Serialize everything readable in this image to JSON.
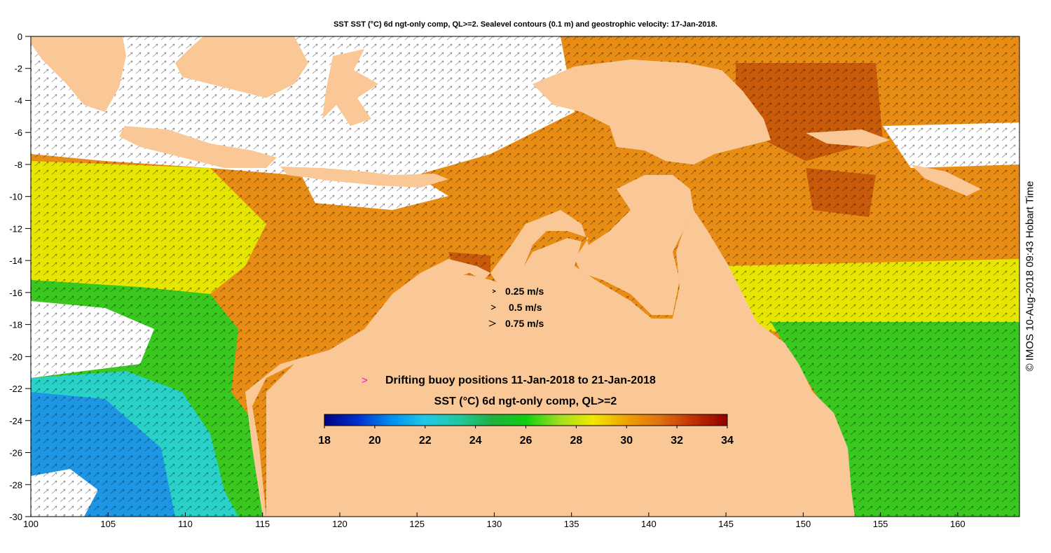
{
  "title": "SST SST (°C) 6d ngt-only comp, QL>=2. Sealevel contours (0.1 m) and geostrophic velocity: 17-Jan-2018.",
  "credit": "© IMOS 10-Aug-2018 09:43 Hobart Time",
  "axes": {
    "lon_range": [
      100,
      164
    ],
    "lat_range": [
      -30,
      0
    ],
    "x_ticks": [
      100,
      105,
      110,
      115,
      120,
      125,
      130,
      135,
      140,
      145,
      150,
      155,
      160
    ],
    "y_ticks": [
      0,
      -2,
      -4,
      -6,
      -8,
      -10,
      -12,
      -14,
      -16,
      -18,
      -20,
      -22,
      -24,
      -26,
      -28,
      -30
    ]
  },
  "velocity_legend": [
    {
      "label": "0.25 m/s",
      "speed": 0.25
    },
    {
      "label": "0.5 m/s",
      "speed": 0.5
    },
    {
      "label": "0.75 m/s",
      "speed": 0.75
    }
  ],
  "buoy_legend": {
    "symbol": ">",
    "label": "Drifting buoy positions 11-Jan-2018 to 21-Jan-2018",
    "color": "#ff00ff"
  },
  "colorbar": {
    "title": "SST (°C) 6d ngt-only comp, QL>=2",
    "range": [
      18,
      34
    ],
    "ticks": [
      "18",
      "20",
      "22",
      "24",
      "26",
      "28",
      "30",
      "32",
      "34"
    ],
    "colors": [
      "#000080",
      "#0030d0",
      "#0090f0",
      "#20c8e8",
      "#20c8a0",
      "#20b040",
      "#10d010",
      "#a0e020",
      "#f0e800",
      "#f0a000",
      "#e07010",
      "#c03000",
      "#900000"
    ]
  },
  "colors": {
    "land": "#fac896",
    "no_data": "#ffffff",
    "warm": "#e88c14",
    "hot": "#c85a0a",
    "yellow": "#e6e600",
    "green": "#38c81e",
    "cyan": "#28d2c8",
    "blue": "#1e96e6"
  }
}
